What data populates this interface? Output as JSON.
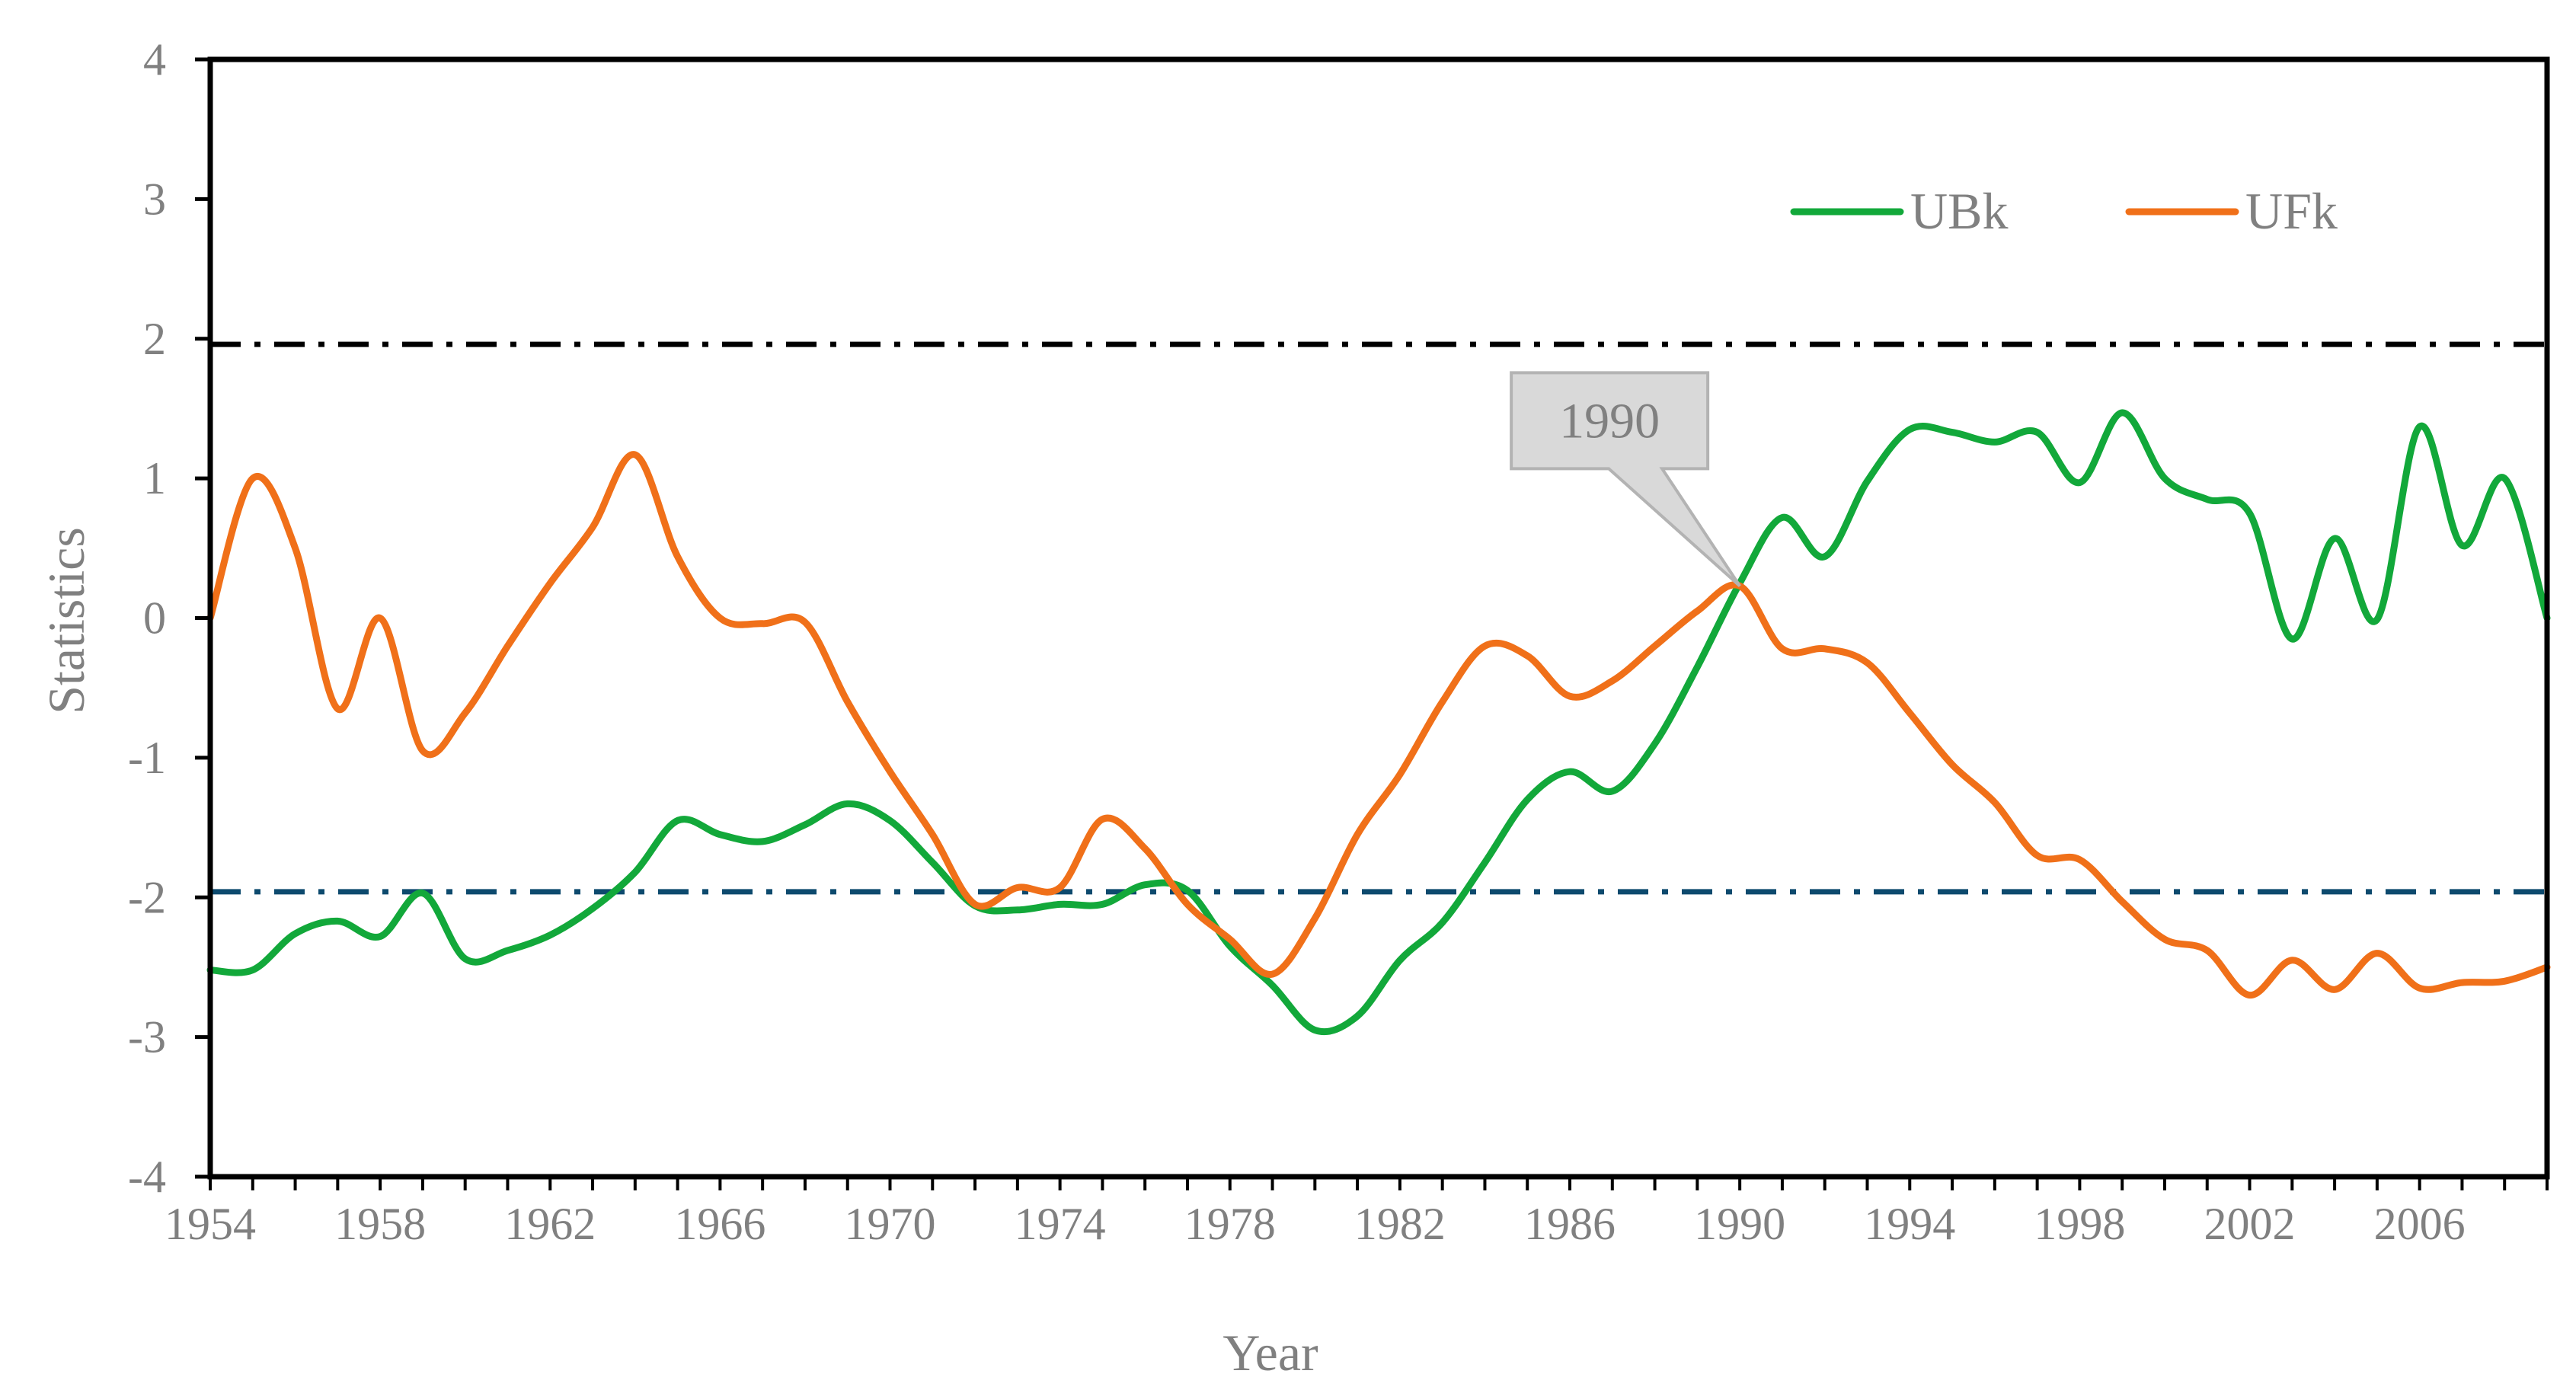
{
  "chart_data": {
    "type": "line",
    "xlabel": "Year",
    "ylabel": "Statistics",
    "xlim": [
      1954,
      2009
    ],
    "ylim": [
      -4,
      4
    ],
    "x_ticks": [
      1954,
      1958,
      1962,
      1966,
      1970,
      1974,
      1978,
      1982,
      1986,
      1990,
      1994,
      1998,
      2002,
      2006
    ],
    "x_tick_labels": [
      "1954",
      "1958",
      "1962",
      "1966",
      "1970",
      "1974",
      "1978",
      "1982",
      "1986",
      "1990",
      "1994",
      "1998",
      "2002",
      "2006"
    ],
    "y_ticks": [
      -4,
      -3,
      -2,
      -1,
      0,
      1,
      2,
      3,
      4
    ],
    "y_tick_labels": [
      "-4",
      "-3",
      "-2",
      "-1",
      "0",
      "1",
      "2",
      "3",
      "4"
    ],
    "x": [
      1954,
      1955,
      1956,
      1957,
      1958,
      1959,
      1960,
      1961,
      1962,
      1963,
      1964,
      1965,
      1966,
      1967,
      1968,
      1969,
      1970,
      1971,
      1972,
      1973,
      1974,
      1975,
      1976,
      1977,
      1978,
      1979,
      1980,
      1981,
      1982,
      1983,
      1984,
      1985,
      1986,
      1987,
      1988,
      1989,
      1990,
      1991,
      1992,
      1993,
      1994,
      1995,
      1996,
      1997,
      1998,
      1999,
      2000,
      2001,
      2002,
      2003,
      2004,
      2005,
      2006,
      2007,
      2008,
      2009
    ],
    "series": [
      {
        "name": "UBk",
        "color": "#12a83a",
        "values": [
          -2.52,
          -2.52,
          -2.26,
          -2.17,
          -2.28,
          -1.97,
          -2.44,
          -2.38,
          -2.27,
          -2.08,
          -1.82,
          -1.45,
          -1.55,
          -1.6,
          -1.48,
          -1.33,
          -1.45,
          -1.75,
          -2.06,
          -2.09,
          -2.05,
          -2.05,
          -1.91,
          -1.95,
          -2.35,
          -2.63,
          -2.95,
          -2.85,
          -2.45,
          -2.18,
          -1.75,
          -1.3,
          -1.1,
          -1.24,
          -0.9,
          -0.35,
          0.25,
          0.72,
          0.44,
          0.98,
          1.35,
          1.33,
          1.26,
          1.33,
          0.97,
          1.47,
          1.0,
          0.85,
          0.75,
          -0.15,
          0.57,
          -0.01,
          1.37,
          0.52,
          1.0,
          0.0
        ]
      },
      {
        "name": "UFk",
        "color": "#f07019",
        "values": [
          0.0,
          1.0,
          0.5,
          -0.65,
          0.0,
          -0.95,
          -0.68,
          -0.2,
          0.25,
          0.65,
          1.17,
          0.44,
          0.0,
          -0.04,
          -0.03,
          -0.6,
          -1.1,
          -1.55,
          -2.05,
          -1.93,
          -1.93,
          -1.44,
          -1.65,
          -2.05,
          -2.3,
          -2.55,
          -2.15,
          -1.55,
          -1.12,
          -0.6,
          -0.2,
          -0.27,
          -0.56,
          -0.45,
          -0.2,
          0.05,
          0.23,
          -0.22,
          -0.22,
          -0.32,
          -0.68,
          -1.05,
          -1.32,
          -1.7,
          -1.73,
          -2.03,
          -2.3,
          -2.38,
          -2.7,
          -2.45,
          -2.66,
          -2.4,
          -2.65,
          -2.61,
          -2.6,
          -2.5
        ]
      }
    ],
    "reference_lines": [
      {
        "name": "upper-critical",
        "value": 1.96,
        "color": "#000000",
        "style": "dash-dot"
      },
      {
        "name": "lower-critical",
        "value": -1.96,
        "color": "#0d4a6e",
        "style": "dash-dot"
      }
    ],
    "annotations": [
      {
        "text": "1990",
        "x": 1990,
        "y": 0.23
      }
    ],
    "legend": {
      "position": "top-right",
      "entries": [
        "UBk",
        "UFk"
      ]
    },
    "grid": false
  }
}
